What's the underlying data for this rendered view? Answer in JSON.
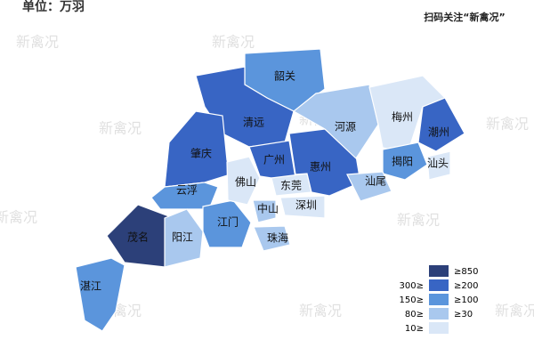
{
  "header": {
    "unit": "单位：万羽",
    "qr_caption": "扫码关注“新禽况”"
  },
  "watermark": "新禽况",
  "legend": [
    {
      "right": "≥850",
      "color": "#2c4079"
    },
    {
      "left": "300≥",
      "right": "≥200",
      "color": "#3865c4"
    },
    {
      "left": "150≥",
      "right": "≥100",
      "color": "#5b95dc"
    },
    {
      "left": "80≥",
      "right": "≥30",
      "color": "#a9c8ee"
    },
    {
      "left": "10≥",
      "color": "#dae7f7"
    }
  ],
  "regions": [
    {
      "name": "韶关",
      "level": 2
    },
    {
      "name": "清远",
      "level": 1
    },
    {
      "name": "肇庆",
      "level": 1
    },
    {
      "name": "云浮",
      "level": 2
    },
    {
      "name": "茂名",
      "level": 0
    },
    {
      "name": "阳江",
      "level": 3
    },
    {
      "name": "江门",
      "level": 2
    },
    {
      "name": "湛江",
      "level": 2
    },
    {
      "name": "佛山",
      "level": 4
    },
    {
      "name": "广州",
      "level": 1
    },
    {
      "name": "中山",
      "level": 3
    },
    {
      "name": "珠海",
      "level": 3
    },
    {
      "name": "东莞",
      "level": 4
    },
    {
      "name": "深圳",
      "level": 4
    },
    {
      "name": "惠州",
      "level": 1
    },
    {
      "name": "河源",
      "level": 3
    },
    {
      "name": "梅州",
      "level": 4
    },
    {
      "name": "潮州",
      "level": 1
    },
    {
      "name": "揭阳",
      "level": 2
    },
    {
      "name": "汕头",
      "level": 4
    },
    {
      "name": "汕尾",
      "level": 3
    }
  ]
}
